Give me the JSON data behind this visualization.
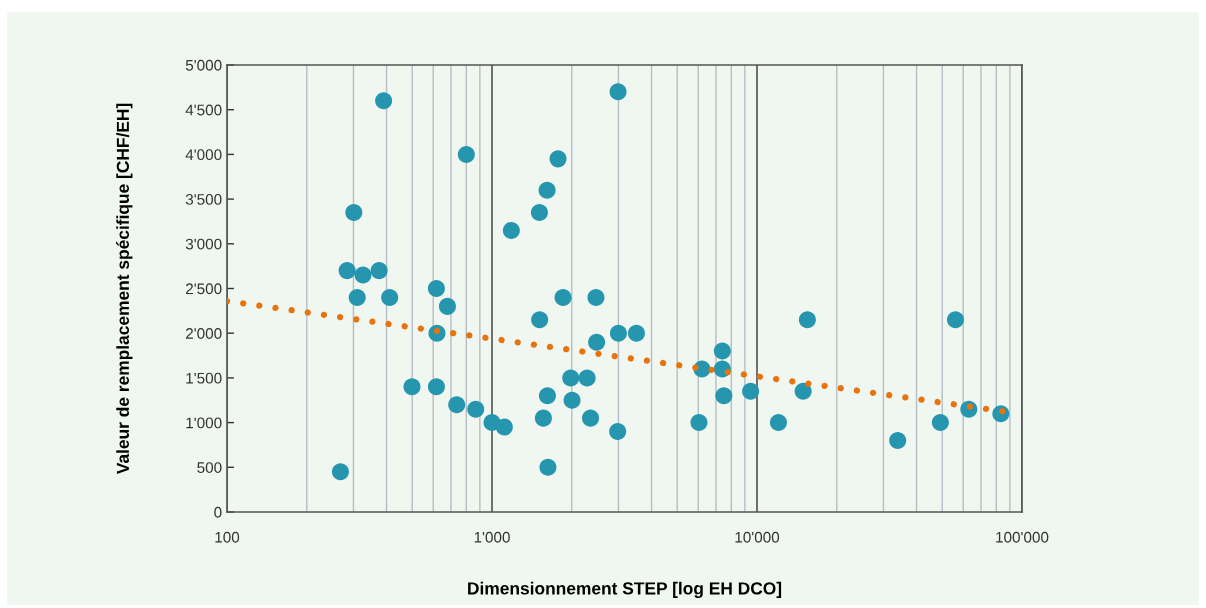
{
  "chart_data": {
    "type": "scatter",
    "xlabel": "Dimensionnement STEP [log EH DCO]",
    "ylabel": "Valeur de remplacement spécifique [CHF/EH]",
    "log": "x",
    "grid": "x",
    "xlim": [
      100,
      100000
    ],
    "xticks": [
      {
        "value": 100,
        "label": "100"
      },
      {
        "value": 1000,
        "label": "1'000"
      },
      {
        "value": 10000,
        "label": "10'000"
      },
      {
        "value": 100000,
        "label": "100'000"
      }
    ],
    "ylim": [
      0,
      5000
    ],
    "yticks": [
      {
        "value": 0,
        "label": "0"
      },
      {
        "value": 500,
        "label": "500"
      },
      {
        "value": 1000,
        "label": "1'000"
      },
      {
        "value": 1500,
        "label": "1'500"
      },
      {
        "value": 2000,
        "label": "2'000"
      },
      {
        "value": 2500,
        "label": "2'500"
      },
      {
        "value": 3000,
        "label": "3'000"
      },
      {
        "value": 3500,
        "label": "3'500"
      },
      {
        "value": 4000,
        "label": "4'000"
      },
      {
        "value": 4500,
        "label": "4'500"
      },
      {
        "value": 5000,
        "label": "5'000"
      }
    ],
    "series": [
      {
        "marker": "circle",
        "color": "#2596ae",
        "x": [
          390,
          800,
          301,
          284,
          326,
          375,
          310,
          411,
          617,
          679,
          620,
          499,
          617,
          736,
          868,
          1000,
          1113,
          268,
          1183,
          1510,
          1614,
          1775,
          2990,
          1854,
          2468,
          1513,
          3000,
          3508,
          2482,
          1982,
          2286,
          1619,
          2005,
          1563,
          2354,
          2980,
          1626,
          6200,
          7400,
          7400,
          7500,
          9460,
          6040,
          12050,
          15490,
          14930,
          33960,
          49200,
          56100,
          63000,
          83200
        ],
        "values": [
          4600,
          4000,
          3350,
          2700,
          2650,
          2700,
          2400,
          2400,
          2500,
          2300,
          2000,
          1400,
          1400,
          1200,
          1150,
          1000,
          950,
          450,
          3150,
          3350,
          3600,
          3950,
          4700,
          2400,
          2400,
          2150,
          2000,
          2000,
          1900,
          1500,
          1500,
          1300,
          1250,
          1050,
          1050,
          900,
          500,
          1600,
          1800,
          1600,
          1300,
          1350,
          1000,
          1000,
          2150,
          1350,
          800,
          1000,
          2150,
          1150,
          1100
        ]
      },
      {
        "type": "line",
        "marker": "none",
        "color": "#e8730c",
        "line_style": "dotted",
        "x": [
          100,
          88000
        ],
        "values": [
          2360,
          1120
        ]
      }
    ]
  }
}
